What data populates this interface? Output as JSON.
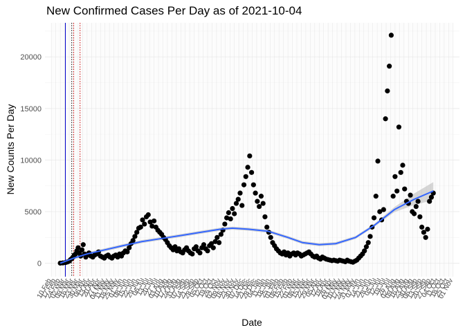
{
  "chart_data": {
    "type": "scatter",
    "title": "New Confirmed Cases Per Day as of 2021-10-04",
    "xlabel": "Date",
    "ylabel": "New Counts Per Day",
    "x_range": [
      "2020-02-10",
      "2021-11-01"
    ],
    "ylim": [
      -1300,
      23300
    ],
    "y_ticks": [
      0,
      5000,
      10000,
      15000,
      20000
    ],
    "grid": true,
    "legend": "none",
    "x_tick_labels": [
      "10 Feb",
      "17 Feb",
      "24 Feb",
      "02 Mar",
      "09 Mar",
      "16 Mar",
      "23 Mar",
      "30 Mar",
      "06 Apr",
      "13 Apr",
      "20 Apr",
      "27 Apr",
      "04 May",
      "11 May",
      "18 May",
      "25 May",
      "01 Jun",
      "08 Jun",
      "15 Jun",
      "22 Jun",
      "29 Jun",
      "06 Jul",
      "13 Jul",
      "20 Jul",
      "27 Jul",
      "03 Aug",
      "10 Aug",
      "17 Aug",
      "24 Aug",
      "31 Aug",
      "07 Sep",
      "14 Sep",
      "21 Sep",
      "28 Sep",
      "05 Oct",
      "12 Oct",
      "19 Oct",
      "26 Oct",
      "02 Nov",
      "09 Nov",
      "16 Nov",
      "23 Nov",
      "30 Nov",
      "07 Dec",
      "14 Dec",
      "21 Dec",
      "28 Dec",
      "04 Jan",
      "11 Jan",
      "18 Jan",
      "25 Jan",
      "01 Feb",
      "08 Feb",
      "15 Feb",
      "22 Feb",
      "01 Mar",
      "08 Mar",
      "15 Mar",
      "22 Mar",
      "29 Mar",
      "05 Apr",
      "12 Apr",
      "19 Apr",
      "26 Apr",
      "03 May",
      "10 May",
      "17 May",
      "24 May",
      "31 May",
      "07 Jun",
      "14 Jun",
      "21 Jun",
      "28 Jun",
      "05 Jul",
      "12 Jul",
      "19 Jul",
      "26 Jul",
      "02 Aug",
      "09 Aug",
      "16 Aug",
      "23 Aug",
      "30 Aug",
      "06 Sep",
      "13 Sep",
      "20 Sep",
      "27 Sep",
      "04 Oct",
      "11 Oct",
      "18 Oct",
      "25 Oct",
      "01 Nov"
    ],
    "vertical_lines": [
      {
        "date": "2020-03-03",
        "color": "#0000cc",
        "style": "solid"
      },
      {
        "date": "2020-03-13",
        "color": "#000000",
        "style": "dotted"
      },
      {
        "date": "2020-03-16",
        "color": "#cc0000",
        "style": "dotted"
      },
      {
        "date": "2020-03-26",
        "color": "#cc0000",
        "style": "dotted"
      }
    ],
    "points_color": "#000000",
    "smooth_color": "#3366ff",
    "band_color": "#bdbdbd",
    "points": [
      [
        "2020-02-24",
        10
      ],
      [
        "2020-02-28",
        30
      ],
      [
        "2020-03-03",
        60
      ],
      [
        "2020-03-06",
        120
      ],
      [
        "2020-03-09",
        200
      ],
      [
        "2020-03-11",
        350
      ],
      [
        "2020-03-13",
        450
      ],
      [
        "2020-03-15",
        600
      ],
      [
        "2020-03-17",
        800
      ],
      [
        "2020-03-19",
        900
      ],
      [
        "2020-03-21",
        1200
      ],
      [
        "2020-03-23",
        1500
      ],
      [
        "2020-03-25",
        1000
      ],
      [
        "2020-03-27",
        700
      ],
      [
        "2020-03-29",
        1300
      ],
      [
        "2020-03-31",
        1800
      ],
      [
        "2020-04-02",
        900
      ],
      [
        "2020-04-04",
        600
      ],
      [
        "2020-04-06",
        800
      ],
      [
        "2020-04-09",
        1000
      ],
      [
        "2020-04-12",
        700
      ],
      [
        "2020-04-15",
        600
      ],
      [
        "2020-04-18",
        800
      ],
      [
        "2020-04-21",
        900
      ],
      [
        "2020-04-24",
        1100
      ],
      [
        "2020-04-27",
        700
      ],
      [
        "2020-04-30",
        600
      ],
      [
        "2020-05-03",
        500
      ],
      [
        "2020-05-06",
        700
      ],
      [
        "2020-05-09",
        800
      ],
      [
        "2020-05-12",
        600
      ],
      [
        "2020-05-15",
        500
      ],
      [
        "2020-05-18",
        700
      ],
      [
        "2020-05-21",
        800
      ],
      [
        "2020-05-24",
        600
      ],
      [
        "2020-05-27",
        900
      ],
      [
        "2020-05-30",
        700
      ],
      [
        "2020-06-02",
        1000
      ],
      [
        "2020-06-05",
        1200
      ],
      [
        "2020-06-08",
        1100
      ],
      [
        "2020-06-11",
        1500
      ],
      [
        "2020-06-14",
        1900
      ],
      [
        "2020-06-17",
        2200
      ],
      [
        "2020-06-20",
        2600
      ],
      [
        "2020-06-23",
        3000
      ],
      [
        "2020-06-26",
        3400
      ],
      [
        "2020-06-29",
        3500
      ],
      [
        "2020-07-02",
        4200
      ],
      [
        "2020-07-05",
        3800
      ],
      [
        "2020-07-08",
        4500
      ],
      [
        "2020-07-11",
        4700
      ],
      [
        "2020-07-14",
        4000
      ],
      [
        "2020-07-17",
        3600
      ],
      [
        "2020-07-20",
        4100
      ],
      [
        "2020-07-23",
        3500
      ],
      [
        "2020-07-26",
        3200
      ],
      [
        "2020-07-29",
        3000
      ],
      [
        "2020-08-01",
        2800
      ],
      [
        "2020-08-04",
        2500
      ],
      [
        "2020-08-07",
        2300
      ],
      [
        "2020-08-10",
        2000
      ],
      [
        "2020-08-13",
        1700
      ],
      [
        "2020-08-16",
        1500
      ],
      [
        "2020-08-19",
        1300
      ],
      [
        "2020-08-22",
        1600
      ],
      [
        "2020-08-25",
        1200
      ],
      [
        "2020-08-28",
        1400
      ],
      [
        "2020-08-31",
        1100
      ],
      [
        "2020-09-03",
        1000
      ],
      [
        "2020-09-06",
        1300
      ],
      [
        "2020-09-09",
        1500
      ],
      [
        "2020-09-12",
        1200
      ],
      [
        "2020-09-15",
        1000
      ],
      [
        "2020-09-18",
        900
      ],
      [
        "2020-09-21",
        1400
      ],
      [
        "2020-09-24",
        1600
      ],
      [
        "2020-09-27",
        1200
      ],
      [
        "2020-09-30",
        1000
      ],
      [
        "2020-10-03",
        1500
      ],
      [
        "2020-10-06",
        1800
      ],
      [
        "2020-10-09",
        1400
      ],
      [
        "2020-10-12",
        1200
      ],
      [
        "2020-10-15",
        1700
      ],
      [
        "2020-10-18",
        1900
      ],
      [
        "2020-10-21",
        1500
      ],
      [
        "2020-10-24",
        2100
      ],
      [
        "2020-10-27",
        2500
      ],
      [
        "2020-10-30",
        2000
      ],
      [
        "2020-11-02",
        2800
      ],
      [
        "2020-11-05",
        3200
      ],
      [
        "2020-11-08",
        3800
      ],
      [
        "2020-11-11",
        4400
      ],
      [
        "2020-11-14",
        4900
      ],
      [
        "2020-11-17",
        4300
      ],
      [
        "2020-11-20",
        5300
      ],
      [
        "2020-11-23",
        4800
      ],
      [
        "2020-11-26",
        5800
      ],
      [
        "2020-11-29",
        6200
      ],
      [
        "2020-12-02",
        6800
      ],
      [
        "2020-12-05",
        5600
      ],
      [
        "2020-12-08",
        7600
      ],
      [
        "2020-12-11",
        8400
      ],
      [
        "2020-12-14",
        9300
      ],
      [
        "2020-12-17",
        10400
      ],
      [
        "2020-12-20",
        8800
      ],
      [
        "2020-12-23",
        7600
      ],
      [
        "2020-12-26",
        6800
      ],
      [
        "2020-12-29",
        6000
      ],
      [
        "2021-01-01",
        5500
      ],
      [
        "2021-01-04",
        6500
      ],
      [
        "2021-01-07",
        5800
      ],
      [
        "2021-01-10",
        4500
      ],
      [
        "2021-01-13",
        3500
      ],
      [
        "2021-01-16",
        3000
      ],
      [
        "2021-01-19",
        2500
      ],
      [
        "2021-01-22",
        2000
      ],
      [
        "2021-01-25",
        1700
      ],
      [
        "2021-01-28",
        1400
      ],
      [
        "2021-01-31",
        1200
      ],
      [
        "2021-02-03",
        1000
      ],
      [
        "2021-02-06",
        900
      ],
      [
        "2021-02-09",
        1100
      ],
      [
        "2021-02-12",
        800
      ],
      [
        "2021-02-15",
        1000
      ],
      [
        "2021-02-18",
        700
      ],
      [
        "2021-02-21",
        900
      ],
      [
        "2021-02-24",
        1000
      ],
      [
        "2021-02-27",
        800
      ],
      [
        "2021-03-02",
        1000
      ],
      [
        "2021-03-05",
        900
      ],
      [
        "2021-03-08",
        700
      ],
      [
        "2021-03-11",
        800
      ],
      [
        "2021-03-14",
        900
      ],
      [
        "2021-03-17",
        1000
      ],
      [
        "2021-03-20",
        1100
      ],
      [
        "2021-03-23",
        900
      ],
      [
        "2021-03-26",
        700
      ],
      [
        "2021-03-29",
        600
      ],
      [
        "2021-04-01",
        700
      ],
      [
        "2021-04-04",
        500
      ],
      [
        "2021-04-07",
        400
      ],
      [
        "2021-04-10",
        600
      ],
      [
        "2021-04-13",
        500
      ],
      [
        "2021-04-16",
        400
      ],
      [
        "2021-04-19",
        350
      ],
      [
        "2021-04-22",
        300
      ],
      [
        "2021-04-25",
        250
      ],
      [
        "2021-04-28",
        300
      ],
      [
        "2021-05-01",
        250
      ],
      [
        "2021-05-04",
        200
      ],
      [
        "2021-05-07",
        300
      ],
      [
        "2021-05-10",
        250
      ],
      [
        "2021-05-13",
        200
      ],
      [
        "2021-05-16",
        150
      ],
      [
        "2021-05-19",
        300
      ],
      [
        "2021-05-22",
        200
      ],
      [
        "2021-05-25",
        150
      ],
      [
        "2021-05-28",
        100
      ],
      [
        "2021-05-31",
        200
      ],
      [
        "2021-06-03",
        300
      ],
      [
        "2021-06-06",
        500
      ],
      [
        "2021-06-09",
        700
      ],
      [
        "2021-06-12",
        900
      ],
      [
        "2021-06-15",
        1200
      ],
      [
        "2021-06-18",
        1600
      ],
      [
        "2021-06-21",
        2000
      ],
      [
        "2021-06-24",
        2600
      ],
      [
        "2021-06-27",
        3500
      ],
      [
        "2021-06-30",
        4400
      ],
      [
        "2021-07-03",
        6500
      ],
      [
        "2021-07-06",
        9900
      ],
      [
        "2021-07-09",
        5000
      ],
      [
        "2021-07-12",
        4200
      ],
      [
        "2021-07-15",
        5200
      ],
      [
        "2021-07-18",
        14000
      ],
      [
        "2021-07-21",
        16700
      ],
      [
        "2021-07-24",
        19100
      ],
      [
        "2021-07-27",
        22100
      ],
      [
        "2021-07-30",
        6500
      ],
      [
        "2021-08-02",
        8400
      ],
      [
        "2021-08-05",
        7000
      ],
      [
        "2021-08-08",
        13200
      ],
      [
        "2021-08-11",
        8800
      ],
      [
        "2021-08-14",
        9500
      ],
      [
        "2021-08-17",
        7200
      ],
      [
        "2021-08-20",
        6000
      ],
      [
        "2021-08-23",
        5800
      ],
      [
        "2021-08-26",
        6600
      ],
      [
        "2021-08-29",
        5000
      ],
      [
        "2021-09-01",
        4800
      ],
      [
        "2021-09-04",
        5500
      ],
      [
        "2021-09-07",
        6000
      ],
      [
        "2021-09-10",
        4500
      ],
      [
        "2021-09-13",
        3500
      ],
      [
        "2021-09-16",
        3000
      ],
      [
        "2021-09-19",
        2500
      ],
      [
        "2021-09-22",
        3300
      ],
      [
        "2021-09-25",
        6000
      ],
      [
        "2021-09-28",
        6400
      ],
      [
        "2021-10-01",
        6800
      ]
    ],
    "smooth_line": [
      [
        "2020-02-24",
        0
      ],
      [
        "2020-03-16",
        500
      ],
      [
        "2020-04-06",
        900
      ],
      [
        "2020-05-04",
        1300
      ],
      [
        "2020-06-01",
        1700
      ],
      [
        "2020-07-01",
        2100
      ],
      [
        "2020-08-01",
        2400
      ],
      [
        "2020-09-01",
        2700
      ],
      [
        "2020-10-01",
        3000
      ],
      [
        "2020-11-01",
        3300
      ],
      [
        "2020-11-20",
        3400
      ],
      [
        "2020-12-15",
        3300
      ],
      [
        "2021-01-15",
        3100
      ],
      [
        "2021-02-15",
        2500
      ],
      [
        "2021-03-10",
        2000
      ],
      [
        "2021-04-05",
        1800
      ],
      [
        "2021-05-01",
        1900
      ],
      [
        "2021-06-01",
        2500
      ],
      [
        "2021-07-01",
        3700
      ],
      [
        "2021-08-01",
        5200
      ],
      [
        "2021-09-01",
        6200
      ],
      [
        "2021-10-01",
        7000
      ]
    ]
  }
}
